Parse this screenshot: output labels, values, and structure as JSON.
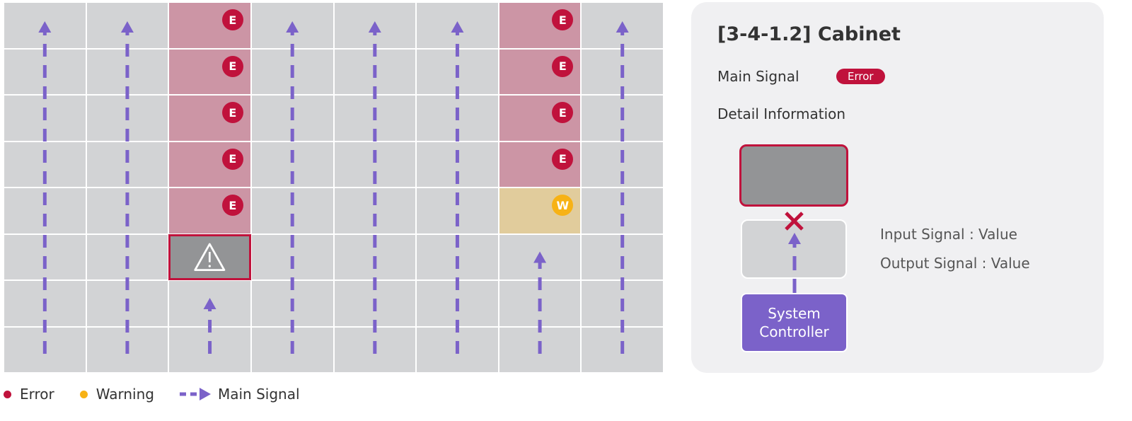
{
  "colors": {
    "error": "#c0123c",
    "warning": "#f7b215",
    "signal": "#7b62c9",
    "cell": "#d2d3d5",
    "error_cell": "#cc95a5",
    "warning_cell": "#e1cc9c",
    "fault_cell": "#939496"
  },
  "grid": {
    "columns": 8,
    "rows": 8,
    "columns_data": [
      {
        "statuses": [
          "normal",
          "normal",
          "normal",
          "normal",
          "normal",
          "normal",
          "normal",
          "normal"
        ],
        "signal_top_row": 0
      },
      {
        "statuses": [
          "normal",
          "normal",
          "normal",
          "normal",
          "normal",
          "normal",
          "normal",
          "normal"
        ],
        "signal_top_row": 0
      },
      {
        "statuses": [
          "error",
          "error",
          "error",
          "error",
          "error",
          "fault",
          "normal",
          "normal"
        ],
        "signal_top_row": 6
      },
      {
        "statuses": [
          "normal",
          "normal",
          "normal",
          "normal",
          "normal",
          "normal",
          "normal",
          "normal"
        ],
        "signal_top_row": 0
      },
      {
        "statuses": [
          "normal",
          "normal",
          "normal",
          "normal",
          "normal",
          "normal",
          "normal",
          "normal"
        ],
        "signal_top_row": 0
      },
      {
        "statuses": [
          "normal",
          "normal",
          "normal",
          "normal",
          "normal",
          "normal",
          "normal",
          "normal"
        ],
        "signal_top_row": 0
      },
      {
        "statuses": [
          "error",
          "error",
          "error",
          "error",
          "warning",
          "normal",
          "normal",
          "normal"
        ],
        "signal_top_row": 5
      },
      {
        "statuses": [
          "normal",
          "normal",
          "normal",
          "normal",
          "normal",
          "normal",
          "normal",
          "normal"
        ],
        "signal_top_row": 0
      }
    ],
    "error_badge": "E",
    "warning_badge": "W",
    "fault_icon": "warning-triangle-icon"
  },
  "panel": {
    "title": "[3-4-1.2] Cabinet",
    "main_signal_label": "Main Signal",
    "main_signal_status": "Error",
    "detail_label": "Detail Information",
    "controller_line1": "System",
    "controller_line2": "Controller",
    "input_signal": "Input Signal : Value",
    "output_signal": "Output Signal : Value"
  },
  "legend": {
    "error": "Error",
    "warning": "Warning",
    "main_signal": "Main Signal"
  }
}
